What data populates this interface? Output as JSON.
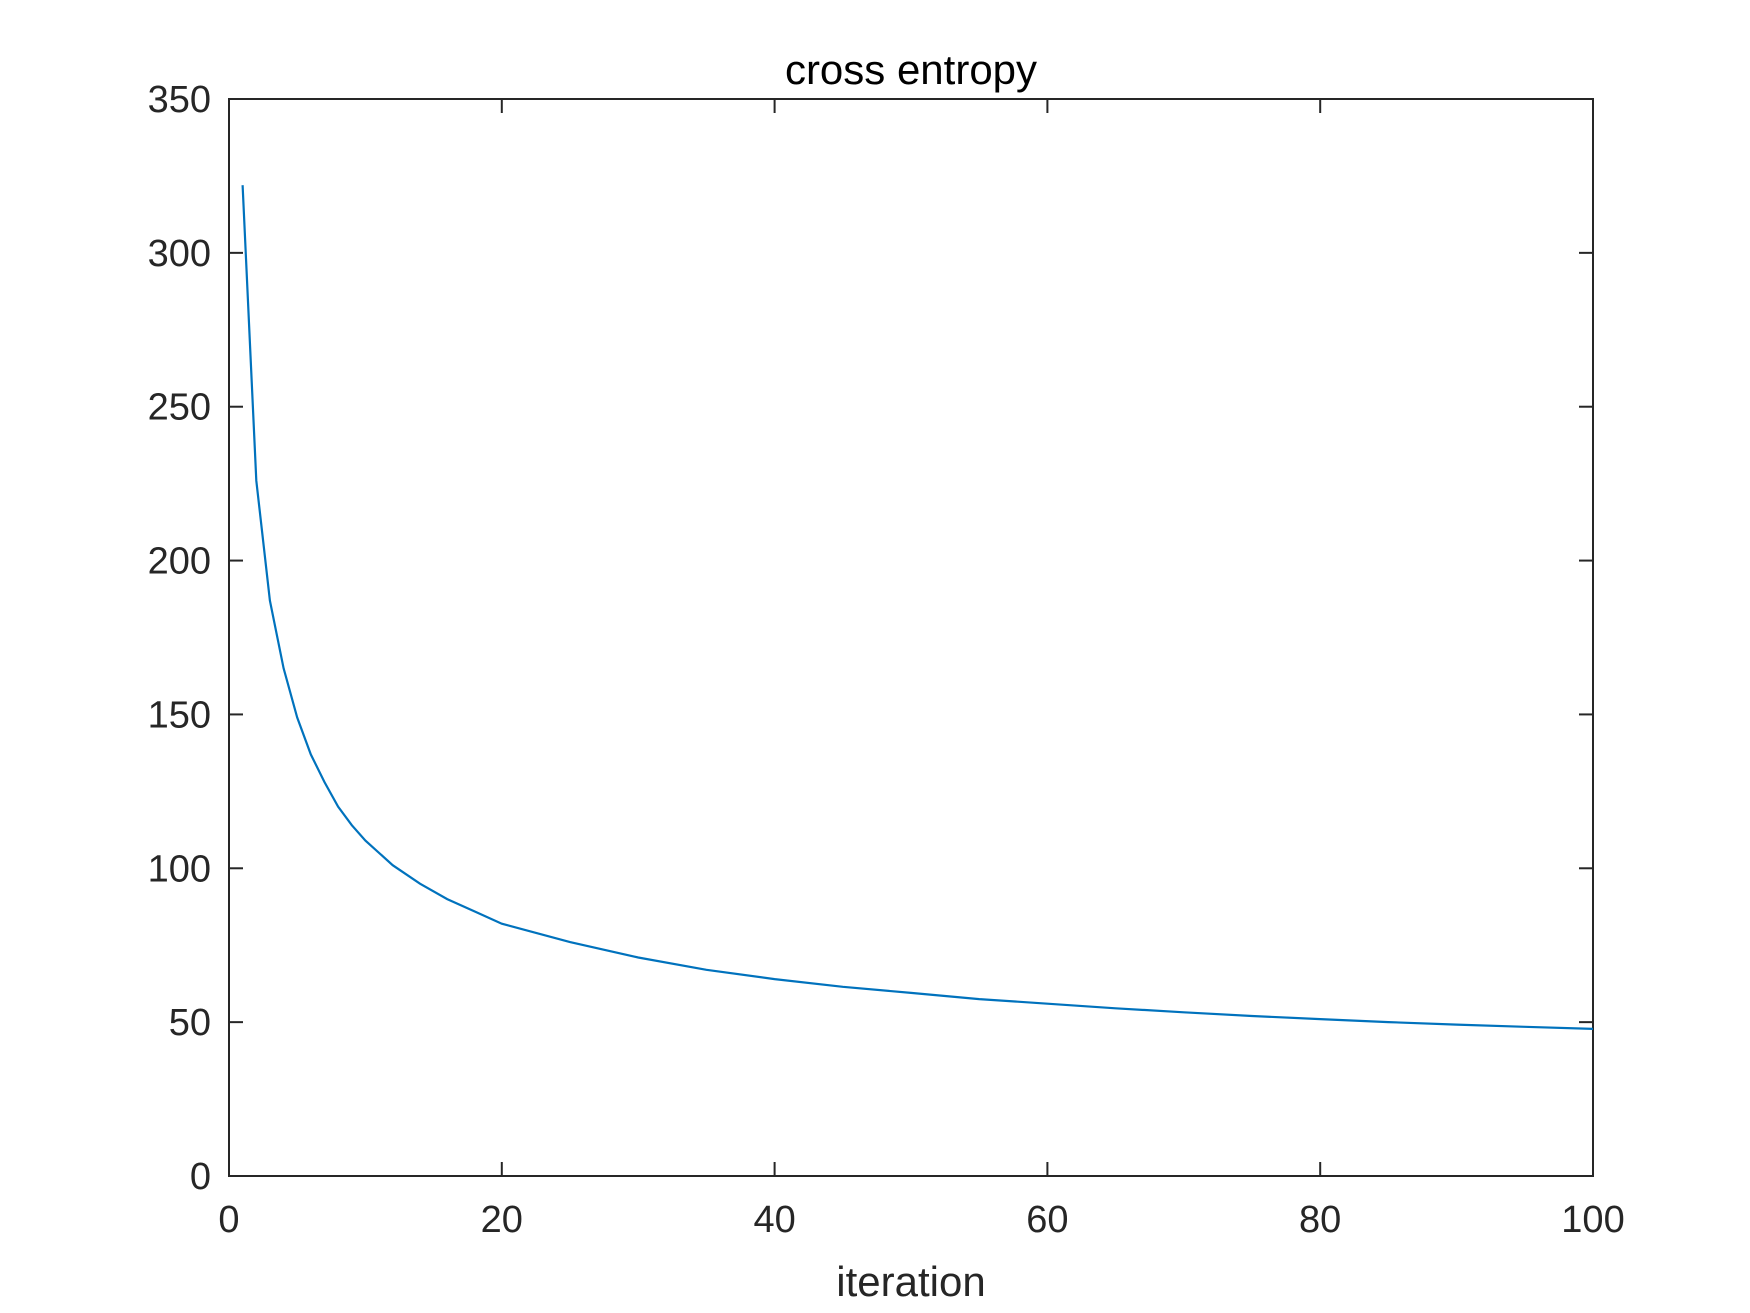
{
  "chart_data": {
    "type": "line",
    "title": "cross entropy",
    "xlabel": "iteration",
    "ylabel": "",
    "xlim": [
      0,
      100
    ],
    "ylim": [
      0,
      350
    ],
    "xticks": [
      0,
      20,
      40,
      60,
      80,
      100
    ],
    "yticks": [
      0,
      50,
      100,
      150,
      200,
      250,
      300,
      350
    ],
    "xtick_labels": [
      "0",
      "20",
      "40",
      "60",
      "80",
      "100"
    ],
    "ytick_labels": [
      "0",
      "50",
      "100",
      "150",
      "200",
      "250",
      "300",
      "350"
    ],
    "grid": false,
    "legend": "none",
    "series": [
      {
        "color": "#0072BD",
        "x": [
          1,
          2,
          3,
          4,
          5,
          6,
          7,
          8,
          9,
          10,
          12,
          14,
          16,
          18,
          20,
          25,
          30,
          35,
          40,
          45,
          50,
          55,
          60,
          65,
          70,
          75,
          80,
          85,
          90,
          95,
          100
        ],
        "y": [
          322,
          226,
          187,
          165,
          149,
          137,
          128,
          120,
          114,
          109,
          101,
          95,
          90,
          86,
          82,
          76,
          71,
          67,
          64,
          61.5,
          59.5,
          57.5,
          56,
          54.5,
          53.2,
          52,
          51,
          50,
          49.2,
          48.5,
          47.8
        ]
      }
    ]
  }
}
